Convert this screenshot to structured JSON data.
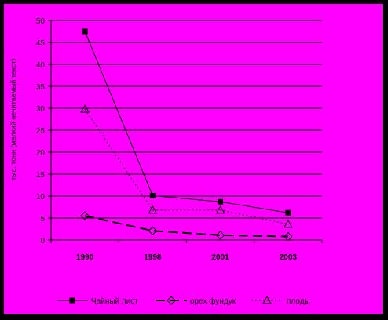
{
  "colors": {
    "frame": "#000000",
    "plot_background": "#FF00FF",
    "gridline": "#000000",
    "series_line": "#000000"
  },
  "chart_data": {
    "type": "line",
    "title": "",
    "xlabel": "",
    "ylabel": "тыс. тонн (мелкий нечитаемый текст)",
    "categories": [
      "1990",
      "1998",
      "2001",
      "2003"
    ],
    "ylim": [
      0,
      50
    ],
    "yticks": [
      0,
      5,
      10,
      15,
      20,
      25,
      30,
      35,
      40,
      45,
      50
    ],
    "grid": true,
    "legend": "bottom",
    "series": [
      {
        "name": "Чайный лист",
        "values": [
          47.5,
          10.1,
          8.7,
          6.2
        ],
        "marker": "filled-square",
        "line": "solid"
      },
      {
        "name": "орех фундук",
        "values": [
          5.5,
          2.1,
          1.1,
          0.8
        ],
        "marker": "open-diamond",
        "line": "long-dash"
      },
      {
        "name": "плоды",
        "values": [
          29.8,
          6.8,
          6.8,
          3.6
        ],
        "marker": "open-triangle",
        "line": "dotted"
      }
    ]
  }
}
